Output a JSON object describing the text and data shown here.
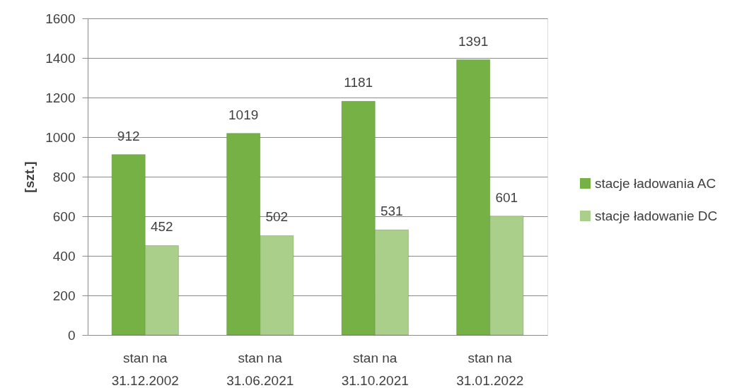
{
  "chart_data": {
    "type": "bar",
    "ylabel": "[szt.]",
    "categories": [
      "stan na 31.12.2002",
      "stan na 31.06.2021",
      "stan na 31.10.2021",
      "stan na 31.01.2022"
    ],
    "series": [
      {
        "name": "stacje ładowania AC",
        "color": "#75b144",
        "values": [
          912,
          1019,
          1181,
          1391
        ]
      },
      {
        "name": "stacje ładowanie DC",
        "color": "#aacf8a",
        "values": [
          452,
          502,
          531,
          601
        ]
      }
    ],
    "ylim": [
      0,
      1600
    ],
    "yticks": [
      0,
      200,
      400,
      600,
      800,
      1000,
      1200,
      1400,
      1600
    ],
    "grid": "y",
    "legend": "right",
    "data_labels": true
  }
}
